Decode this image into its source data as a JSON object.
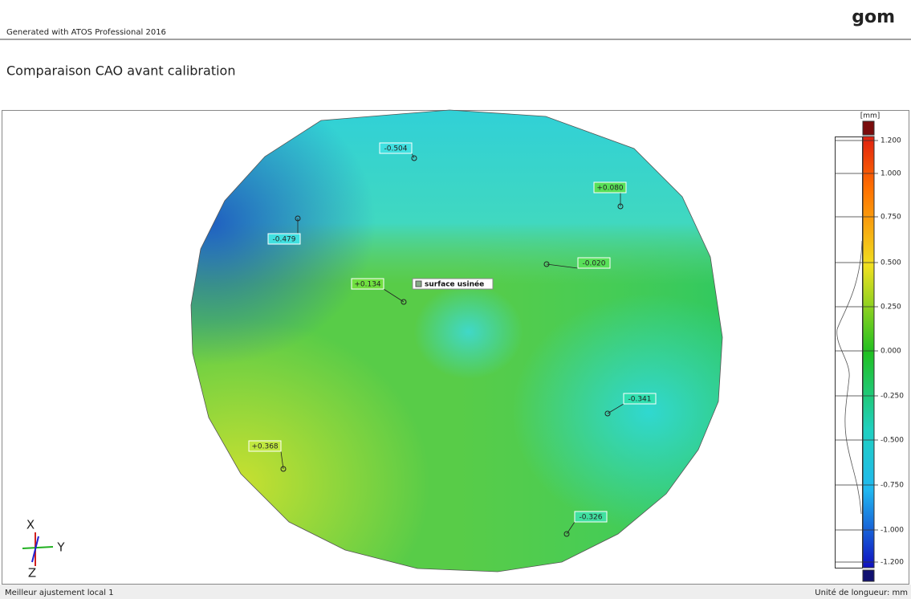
{
  "header": {
    "generator": "Generated with ATOS Professional 2016",
    "logo": "gom"
  },
  "title": "Comparaison CAO avant calibration",
  "view": {
    "surface_label": "surface usinée",
    "deviation_labels": [
      "-0.504",
      "+0.080",
      "-0.479",
      "-0.020",
      "+0.134",
      "-0.341",
      "+0.368",
      "-0.326"
    ],
    "axes": [
      "X",
      "Y",
      "Z"
    ]
  },
  "color_bar": {
    "unit": "[mm]",
    "ticks": [
      "1.200",
      "1.000",
      "0.750",
      "0.500",
      "0.250",
      "0.000",
      "-0.250",
      "-0.500",
      "-0.750",
      "-1.000",
      "-1.200"
    ]
  },
  "footer": {
    "alignment": "Meilleur ajustement local 1",
    "unit": "Unité de longueur: mm"
  }
}
